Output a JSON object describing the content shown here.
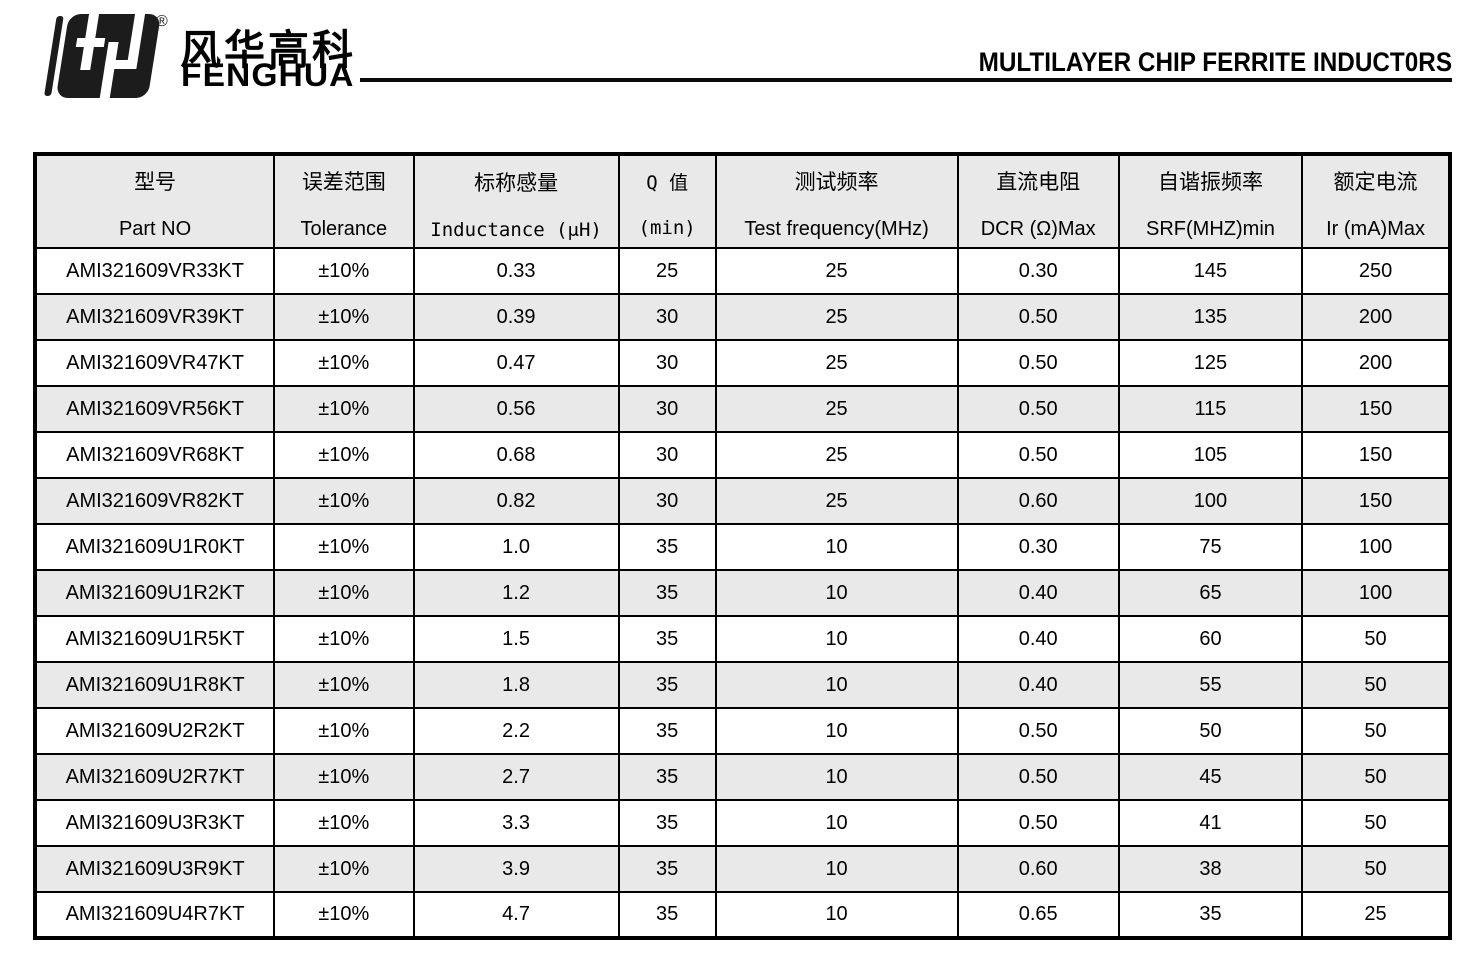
{
  "brand": {
    "logo_icon": "fenghua-fh-logo",
    "registered_mark": "®",
    "name_zh": "风华高科",
    "name_en": "FENGHUA"
  },
  "header": {
    "title": "MULTILAYER CHIP FERRITE INDUCT0RS"
  },
  "table": {
    "columns": [
      {
        "zh": "型号",
        "en": "Part NO"
      },
      {
        "zh": "误差范围",
        "en": "Tolerance"
      },
      {
        "zh": "标称感量",
        "en": "Inductance (μH)"
      },
      {
        "zh": "Q 值",
        "en": "(min)"
      },
      {
        "zh": "测试频率",
        "en": "Test frequency(MHz)"
      },
      {
        "zh": "直流电阻",
        "en": "DCR (Ω)Max"
      },
      {
        "zh": "自谐振频率",
        "en": "SRF(MHZ)min"
      },
      {
        "zh": "额定电流",
        "en": "Ir (mA)Max"
      }
    ],
    "rows": [
      [
        "AMI321609VR33KT",
        "±10%",
        "0.33",
        "25",
        "25",
        "0.30",
        "145",
        "250"
      ],
      [
        "AMI321609VR39KT",
        "±10%",
        "0.39",
        "30",
        "25",
        "0.50",
        "135",
        "200"
      ],
      [
        "AMI321609VR47KT",
        "±10%",
        "0.47",
        "30",
        "25",
        "0.50",
        "125",
        "200"
      ],
      [
        "AMI321609VR56KT",
        "±10%",
        "0.56",
        "30",
        "25",
        "0.50",
        "115",
        "150"
      ],
      [
        "AMI321609VR68KT",
        "±10%",
        "0.68",
        "30",
        "25",
        "0.50",
        "105",
        "150"
      ],
      [
        "AMI321609VR82KT",
        "±10%",
        "0.82",
        "30",
        "25",
        "0.60",
        "100",
        "150"
      ],
      [
        "AMI321609U1R0KT",
        "±10%",
        "1.0",
        "35",
        "10",
        "0.30",
        "75",
        "100"
      ],
      [
        "AMI321609U1R2KT",
        "±10%",
        "1.2",
        "35",
        "10",
        "0.40",
        "65",
        "100"
      ],
      [
        "AMI321609U1R5KT",
        "±10%",
        "1.5",
        "35",
        "10",
        "0.40",
        "60",
        "50"
      ],
      [
        "AMI321609U1R8KT",
        "±10%",
        "1.8",
        "35",
        "10",
        "0.40",
        "55",
        "50"
      ],
      [
        "AMI321609U2R2KT",
        "±10%",
        "2.2",
        "35",
        "10",
        "0.50",
        "50",
        "50"
      ],
      [
        "AMI321609U2R7KT",
        "±10%",
        "2.7",
        "35",
        "10",
        "0.50",
        "45",
        "50"
      ],
      [
        "AMI321609U3R3KT",
        "±10%",
        "3.3",
        "35",
        "10",
        "0.50",
        "41",
        "50"
      ],
      [
        "AMI321609U3R9KT",
        "±10%",
        "3.9",
        "35",
        "10",
        "0.60",
        "38",
        "50"
      ],
      [
        "AMI321609U4R7KT",
        "±10%",
        "4.7",
        "35",
        "10",
        "0.65",
        "35",
        "25"
      ]
    ],
    "colors": {
      "border": "#000000",
      "header_bg": "#e9e9e9",
      "alt_row_bg": "#e9e9e9",
      "row_bg": "#ffffff"
    }
  }
}
